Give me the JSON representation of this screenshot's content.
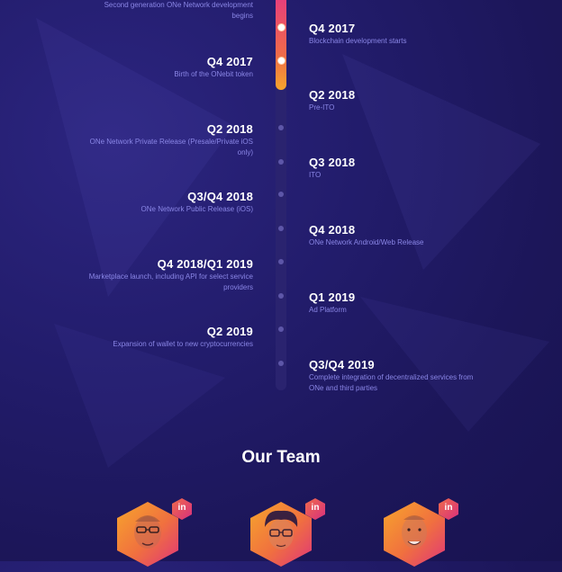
{
  "timeline": {
    "entries": [
      {
        "side": "left",
        "date": "",
        "desc": "Second generation ONe Network development begins"
      },
      {
        "side": "right",
        "date": "Q4 2017",
        "desc": "Blockchain development starts"
      },
      {
        "side": "left",
        "date": "Q4 2017",
        "desc": "Birth of the ONebit token"
      },
      {
        "side": "right",
        "date": "Q2 2018",
        "desc": "Pre-ITO"
      },
      {
        "side": "left",
        "date": "Q2 2018",
        "desc": "ONe Network Private Release (Presale/Private iOS only)"
      },
      {
        "side": "right",
        "date": "Q3 2018",
        "desc": "ITO"
      },
      {
        "side": "left",
        "date": "Q3/Q4 2018",
        "desc": "ONe Network Public Release (iOS)"
      },
      {
        "side": "right",
        "date": "Q4 2018",
        "desc": "ONe Network Android/Web Release"
      },
      {
        "side": "left",
        "date": "Q4 2018/Q1 2019",
        "desc": "Marketplace launch, including API for select service providers"
      },
      {
        "side": "right",
        "date": "Q1 2019",
        "desc": "Ad Platform"
      },
      {
        "side": "left",
        "date": "Q2 2019",
        "desc": "Expansion of wallet to new cryptocurrencies"
      },
      {
        "side": "right",
        "date": "Q3/Q4 2019",
        "desc": "Complete integration of decentralized services from ONe and third parties"
      }
    ]
  },
  "team": {
    "title": "Our Team",
    "members": [
      {
        "linkedin_label": "in",
        "icon": "linkedin-icon"
      },
      {
        "linkedin_label": "in",
        "icon": "linkedin-icon"
      },
      {
        "linkedin_label": "in",
        "icon": "linkedin-icon"
      }
    ]
  },
  "colors": {
    "background": "#1c1659",
    "accent_start": "#e8407a",
    "accent_end": "#f7a52c",
    "desc_text": "#8a86e6"
  }
}
